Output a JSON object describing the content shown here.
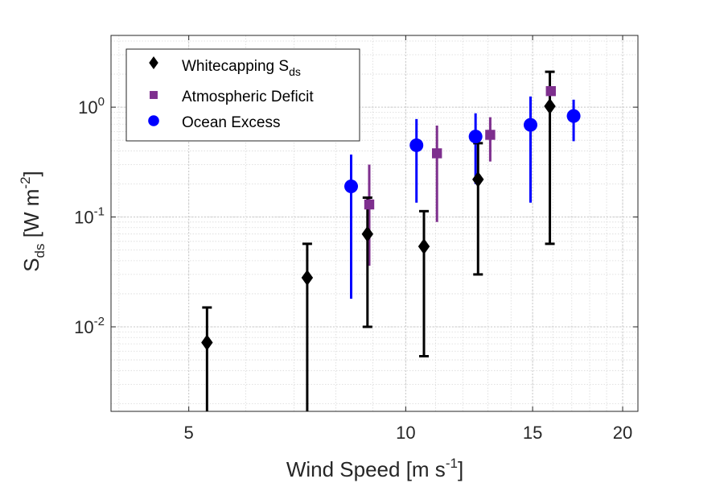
{
  "chart_data": {
    "type": "scatter",
    "x_scale": "log",
    "y_scale": "log",
    "xlim": [
      3.9,
      21
    ],
    "ylim": [
      0.0017,
      4.5
    ],
    "grid": true,
    "minor_grid": true,
    "legend_position": "top-left",
    "xlabel": {
      "main": "Wind Speed [m s",
      "sup": "-1",
      "tail": "]"
    },
    "ylabel": {
      "base": "S",
      "sub": "ds",
      "rest": " [W m",
      "sup": "-2",
      "tail": "]"
    },
    "x_ticks": [
      {
        "value": 5,
        "label": "5"
      },
      {
        "value": 10,
        "label": "10"
      },
      {
        "value": 15,
        "label": "15"
      },
      {
        "value": 20,
        "label": "20"
      }
    ],
    "y_ticks": [
      {
        "value": 0.01,
        "base": "10",
        "exp": "-2"
      },
      {
        "value": 0.1,
        "base": "10",
        "exp": "-1"
      },
      {
        "value": 1,
        "base": "10",
        "exp": "0"
      }
    ],
    "series": [
      {
        "name": {
          "base": "Whitecapping S",
          "sub": "ds"
        },
        "marker": "diamond",
        "color": "#000000",
        "points": [
          {
            "x": 5.3,
            "y": 0.0072,
            "lo": 0.0015,
            "hi": 0.015
          },
          {
            "x": 7.3,
            "y": 0.028,
            "lo": 0.0015,
            "hi": 0.057
          },
          {
            "x": 8.85,
            "y": 0.07,
            "lo": 0.01,
            "hi": 0.15
          },
          {
            "x": 10.6,
            "y": 0.054,
            "lo": 0.0054,
            "hi": 0.113
          },
          {
            "x": 12.6,
            "y": 0.22,
            "lo": 0.03,
            "hi": 0.47
          },
          {
            "x": 15.85,
            "y": 1.02,
            "lo": 0.057,
            "hi": 2.1
          }
        ]
      },
      {
        "name": {
          "base": "Atmospheric Deficit",
          "sub": ""
        },
        "marker": "square",
        "color": "#7E2F8E",
        "points": [
          {
            "x": 8.9,
            "y": 0.13,
            "lo": 0.036,
            "hi": 0.3
          },
          {
            "x": 11.05,
            "y": 0.38,
            "lo": 0.09,
            "hi": 0.68
          },
          {
            "x": 13.1,
            "y": 0.56,
            "lo": 0.32,
            "hi": 0.81
          },
          {
            "x": 15.9,
            "y": 1.4,
            "lo": 1.4,
            "hi": 1.4
          }
        ]
      },
      {
        "name": {
          "base": "Ocean Excess",
          "sub": ""
        },
        "marker": "circle",
        "color": "#0000FF",
        "points": [
          {
            "x": 8.4,
            "y": 0.19,
            "lo": 0.018,
            "hi": 0.37
          },
          {
            "x": 10.35,
            "y": 0.45,
            "lo": 0.135,
            "hi": 0.78
          },
          {
            "x": 12.5,
            "y": 0.54,
            "lo": 0.2,
            "hi": 0.88
          },
          {
            "x": 14.9,
            "y": 0.69,
            "lo": 0.135,
            "hi": 1.25
          },
          {
            "x": 17.1,
            "y": 0.83,
            "lo": 0.49,
            "hi": 1.17
          }
        ]
      }
    ]
  }
}
